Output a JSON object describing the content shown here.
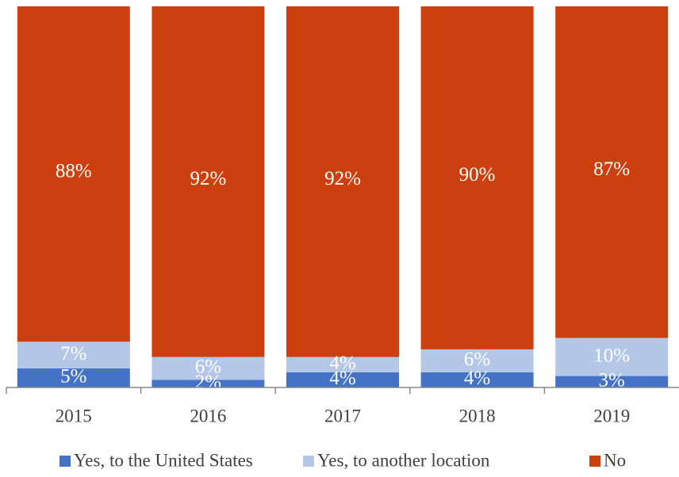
{
  "chart_data": {
    "type": "stacked_bar",
    "categories": [
      "2015",
      "2016",
      "2017",
      "2018",
      "2019"
    ],
    "series": [
      {
        "name": "Yes, to the United States",
        "color": "#4472c4",
        "values": [
          5,
          2,
          4,
          4,
          3
        ],
        "value_labels": [
          "5%",
          "2%",
          "4%",
          "4%",
          "3%"
        ]
      },
      {
        "name": "Yes, to another location",
        "color": "#b4c7e7",
        "values": [
          7,
          6,
          4,
          6,
          10
        ],
        "value_labels": [
          "7%",
          "6%",
          "4%",
          "6%",
          "10%"
        ]
      },
      {
        "name": "No",
        "color": "#cc4010",
        "values": [
          88,
          92,
          92,
          90,
          87
        ],
        "value_labels": [
          "88%",
          "92%",
          "92%",
          "90%",
          "87%"
        ]
      }
    ],
    "ylim": [
      0,
      100
    ],
    "legend": "bottom"
  }
}
